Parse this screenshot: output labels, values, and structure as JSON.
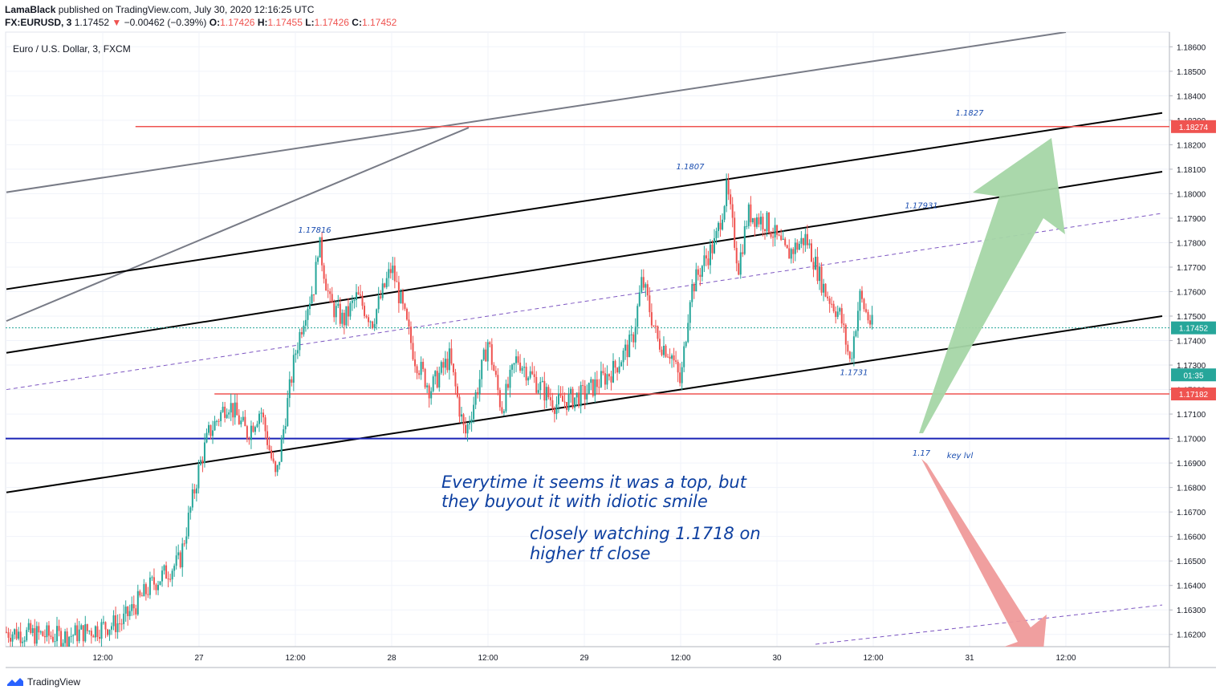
{
  "header": {
    "author": "LamaBlack",
    "published": "published on TradingView.com, July 30, 2020 12:16:25 UTC",
    "symbol": "FX:EURUSD, 3",
    "last": "1.17452",
    "change": "−0.00462 (−0.39%)",
    "o_label": "O:",
    "o_val": "1.17426",
    "h_label": "H:",
    "h_val": "1.17455",
    "l_label": "L:",
    "l_val": "1.17426",
    "c_label": "C:",
    "c_val": "1.17452"
  },
  "footer": {
    "brand": "TradingView"
  },
  "chart_data": {
    "type": "candlestick",
    "title": "Euro / U.S. Dollar, 3, FXCM",
    "ylim": [
      1.1615,
      1.1866
    ],
    "y_ticks": [
      "1.18600",
      "1.18500",
      "1.18400",
      "1.18300",
      "1.18200",
      "1.18100",
      "1.18000",
      "1.17900",
      "1.17800",
      "1.17700",
      "1.17600",
      "1.17500",
      "1.17400",
      "1.17300",
      "1.17200",
      "1.17100",
      "1.17000",
      "1.16900",
      "1.16800",
      "1.16700",
      "1.16600",
      "1.16500",
      "1.16400",
      "1.16300",
      "1.16200"
    ],
    "x_ticks": [
      {
        "t": 0.5,
        "label": "12:00"
      },
      {
        "t": 1.0,
        "label": "27"
      },
      {
        "t": 1.5,
        "label": "12:00"
      },
      {
        "t": 2.0,
        "label": "28"
      },
      {
        "t": 2.5,
        "label": "12:00"
      },
      {
        "t": 3.0,
        "label": "29"
      },
      {
        "t": 3.5,
        "label": "12:00"
      },
      {
        "t": 4.0,
        "label": "30"
      },
      {
        "t": 4.5,
        "label": "12:00"
      },
      {
        "t": 5.0,
        "label": "31"
      },
      {
        "t": 5.5,
        "label": "12:00"
      }
    ],
    "price_path": [
      [
        0.0,
        1.1621
      ],
      [
        0.3,
        1.1619
      ],
      [
        0.6,
        1.1625
      ],
      [
        0.75,
        1.164
      ],
      [
        0.9,
        1.165
      ],
      [
        1.0,
        1.1688
      ],
      [
        1.05,
        1.1702
      ],
      [
        1.15,
        1.1715
      ],
      [
        1.25,
        1.1702
      ],
      [
        1.32,
        1.1712
      ],
      [
        1.4,
        1.1683
      ],
      [
        1.45,
        1.171
      ],
      [
        1.5,
        1.1735
      ],
      [
        1.55,
        1.1752
      ],
      [
        1.6,
        1.1763
      ],
      [
        1.62,
        1.1781
      ],
      [
        1.68,
        1.1755
      ],
      [
        1.75,
        1.1748
      ],
      [
        1.82,
        1.1758
      ],
      [
        1.9,
        1.1748
      ],
      [
        2.0,
        1.177
      ],
      [
        2.05,
        1.1755
      ],
      [
        2.12,
        1.1733
      ],
      [
        2.2,
        1.172
      ],
      [
        2.3,
        1.1733
      ],
      [
        2.38,
        1.1701
      ],
      [
        2.45,
        1.1722
      ],
      [
        2.5,
        1.174
      ],
      [
        2.57,
        1.1712
      ],
      [
        2.65,
        1.1733
      ],
      [
        2.75,
        1.1723
      ],
      [
        2.85,
        1.1714
      ],
      [
        3.0,
        1.1718
      ],
      [
        3.15,
        1.1728
      ],
      [
        3.25,
        1.174
      ],
      [
        3.3,
        1.1765
      ],
      [
        3.38,
        1.174
      ],
      [
        3.45,
        1.1735
      ],
      [
        3.5,
        1.1722
      ],
      [
        3.55,
        1.176
      ],
      [
        3.62,
        1.1772
      ],
      [
        3.68,
        1.178
      ],
      [
        3.74,
        1.1802
      ],
      [
        3.8,
        1.177
      ],
      [
        3.85,
        1.1792
      ],
      [
        3.95,
        1.1788
      ],
      [
        4.05,
        1.1775
      ],
      [
        4.15,
        1.1782
      ],
      [
        4.25,
        1.176
      ],
      [
        4.33,
        1.175
      ],
      [
        4.38,
        1.1731
      ],
      [
        4.43,
        1.1758
      ],
      [
        4.48,
        1.1748
      ],
      [
        4.5,
        1.17452
      ]
    ],
    "horizontal_levels": [
      {
        "price": 1.18274,
        "label": "1.18274",
        "color": "#ef5350"
      },
      {
        "price": 1.17182,
        "label": "1.17182",
        "color": "#ef5350"
      },
      {
        "price": 1.17,
        "color": "#1a23b5"
      },
      {
        "price": 1.17452,
        "label": "1.17452",
        "color": "#26a69a"
      }
    ],
    "countdown": "01:35",
    "level_notes": [
      {
        "t": 5.0,
        "price": 1.1832,
        "text": "1.1827"
      },
      {
        "t": 3.55,
        "price": 1.181,
        "text": "1.1807"
      },
      {
        "t": 4.75,
        "price": 1.1794,
        "text": "1.17931"
      },
      {
        "t": 1.6,
        "price": 1.1784,
        "text": "1.17816"
      },
      {
        "t": 4.4,
        "price": 1.1726,
        "text": "1.1731"
      },
      {
        "t": 4.75,
        "price": 1.1693,
        "text": "1.17"
      },
      {
        "t": 4.95,
        "price": 1.1692,
        "text": "key lvl"
      }
    ],
    "notes": [
      "Everytime it seems it was a top, but",
      "they buyout it with idiotic smile",
      "closely watching 1.1718 on",
      "higher tf close"
    ],
    "colors": {
      "up": "#26a69a",
      "down": "#ef5350",
      "channel": "#000000",
      "trend": "#787b86",
      "mid": "#7e57c2",
      "bull_arrow": "#a5d6a7",
      "bear_arrow": "#ef9a9a"
    }
  }
}
